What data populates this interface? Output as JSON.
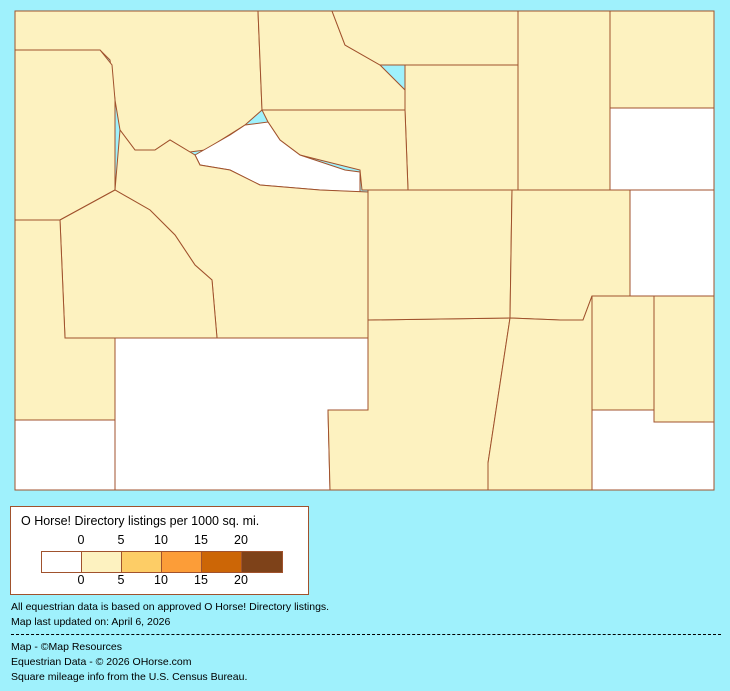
{
  "legend": {
    "title": "O Horse! Directory listings per 1000 sq. mi.",
    "top_ticks": [
      "0",
      "5",
      "10",
      "15",
      "20"
    ],
    "bottom_ticks": [
      "0",
      "5",
      "10",
      "15",
      "20"
    ],
    "colors": [
      "#ffffff",
      "#fdf2c0",
      "#fdcd66",
      "#fc9d38",
      "#cc6606",
      "#7e4219"
    ]
  },
  "colors": {
    "background": "#9ff1fc",
    "border": "#a0522d"
  },
  "map": {
    "region_categories": [
      1,
      1,
      1,
      1,
      1,
      1,
      1,
      0,
      1,
      0,
      1,
      1,
      1,
      0,
      0,
      1,
      1,
      1,
      0,
      1,
      1,
      1,
      0
    ]
  },
  "notes": {
    "data_basis": "All equestrian data is based on approved O Horse! Directory listings.",
    "updated": "Map last updated on: April 6, 2026",
    "map_credit": "Map - ©Map Resources",
    "data_credit": "Equestrian Data - © 2026 OHorse.com",
    "census_credit": "Square mileage info from the U.S. Census Bureau."
  }
}
